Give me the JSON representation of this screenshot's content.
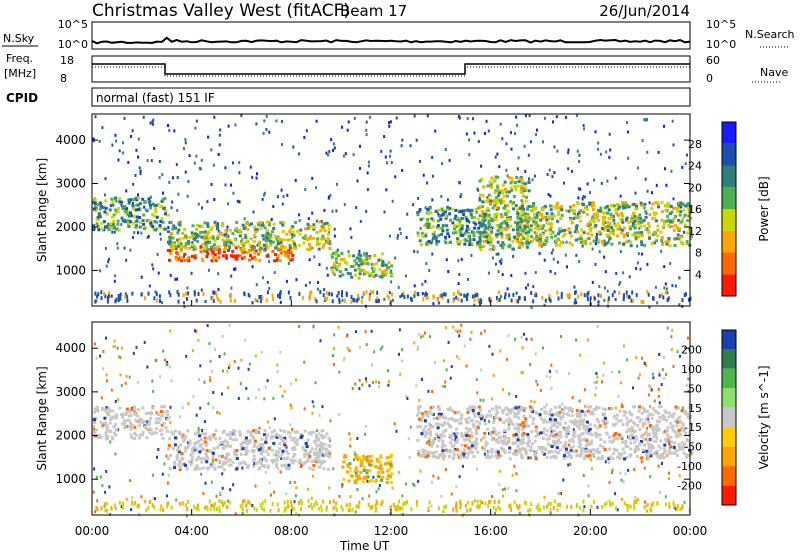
{
  "header": {
    "station": "Christmas Valley West (fitACF)",
    "beam": "Beam 17",
    "date": "26/Jun/2014"
  },
  "top_panels": {
    "nsky_label": "N.Sky",
    "nsky_ticks": [
      "10^5",
      "10^0"
    ],
    "nsearch_ticks": [
      "10^5",
      "10^0"
    ],
    "nsearch_label": "N.Search",
    "freq_label_1": "Freq.",
    "freq_label_2": "[MHz]",
    "freq_ticks": [
      "18",
      "8"
    ],
    "nave_ticks": [
      "60",
      "0"
    ],
    "nave_label": "Nave",
    "cpid_label": "CPID",
    "cpid_text": "normal (fast) 151 IF"
  },
  "chart_data": [
    {
      "type": "heatmap",
      "title": "Power",
      "ylabel": "Slant Range [km]",
      "xlabel": "Time UT",
      "x_ticks": [
        "00:00",
        "04:00",
        "08:00",
        "12:00",
        "16:00",
        "20:00",
        "00:00"
      ],
      "y_ticks": [
        1000,
        2000,
        3000,
        4000
      ],
      "ylim": [
        180,
        4600
      ],
      "xlim_hours": [
        0,
        24
      ],
      "colorbar": {
        "label": "Power [dB]",
        "ticks": [
          "4",
          "8",
          "12",
          "16",
          "20",
          "24",
          "28"
        ],
        "colors": [
          "#1a1aff",
          "#1a4fb0",
          "#2f7f7a",
          "#4caf50",
          "#c8d800",
          "#ffa500",
          "#ff6a00",
          "#ff1a00"
        ]
      },
      "regions": [
        {
          "t": [
            0.0,
            3.0
          ],
          "r": [
            1950,
            2700
          ],
          "level": 3
        },
        {
          "t": [
            3.0,
            8.0
          ],
          "r": [
            1250,
            1600
          ],
          "level": 7
        },
        {
          "t": [
            3.0,
            9.5
          ],
          "r": [
            1500,
            2150
          ],
          "level": 4
        },
        {
          "t": [
            9.5,
            12.0
          ],
          "r": [
            850,
            1450
          ],
          "level": 4
        },
        {
          "t": [
            13.0,
            16.0
          ],
          "r": [
            1600,
            2500
          ],
          "level": 3
        },
        {
          "t": [
            15.5,
            17.5
          ],
          "r": [
            1500,
            3200
          ],
          "level": 4
        },
        {
          "t": [
            17.0,
            24.0
          ],
          "r": [
            1600,
            2600
          ],
          "level": 4
        }
      ]
    },
    {
      "type": "heatmap",
      "title": "Velocity",
      "ylabel": "Slant Range [km]",
      "xlabel": "Time UT",
      "x_ticks": [
        "00:00",
        "04:00",
        "08:00",
        "12:00",
        "16:00",
        "20:00",
        "00:00"
      ],
      "y_ticks": [
        1000,
        2000,
        3000,
        4000
      ],
      "ylim": [
        180,
        4600
      ],
      "xlim_hours": [
        0,
        24
      ],
      "colorbar": {
        "label": "Velocity [m s^-1]",
        "ticks": [
          "200",
          "100",
          "50",
          "15",
          "-15",
          "-50",
          "-100",
          "-200"
        ],
        "colors": [
          "#1a3fb0",
          "#2e7d4f",
          "#4cb84c",
          "#8fe06a",
          "#c8c8c8",
          "#ffcc00",
          "#ffa500",
          "#ff6a00",
          "#ff1a00"
        ]
      },
      "regions": [
        {
          "t": [
            0.0,
            3.0
          ],
          "r": [
            1950,
            2700
          ],
          "level": "ground"
        },
        {
          "t": [
            3.0,
            9.5
          ],
          "r": [
            1250,
            2150
          ],
          "level": "ground"
        },
        {
          "t": [
            10.0,
            12.0
          ],
          "r": [
            950,
            1600
          ],
          "level": "negative"
        },
        {
          "t": [
            13.0,
            24.0
          ],
          "r": [
            1500,
            2700
          ],
          "level": "ground"
        }
      ]
    }
  ]
}
